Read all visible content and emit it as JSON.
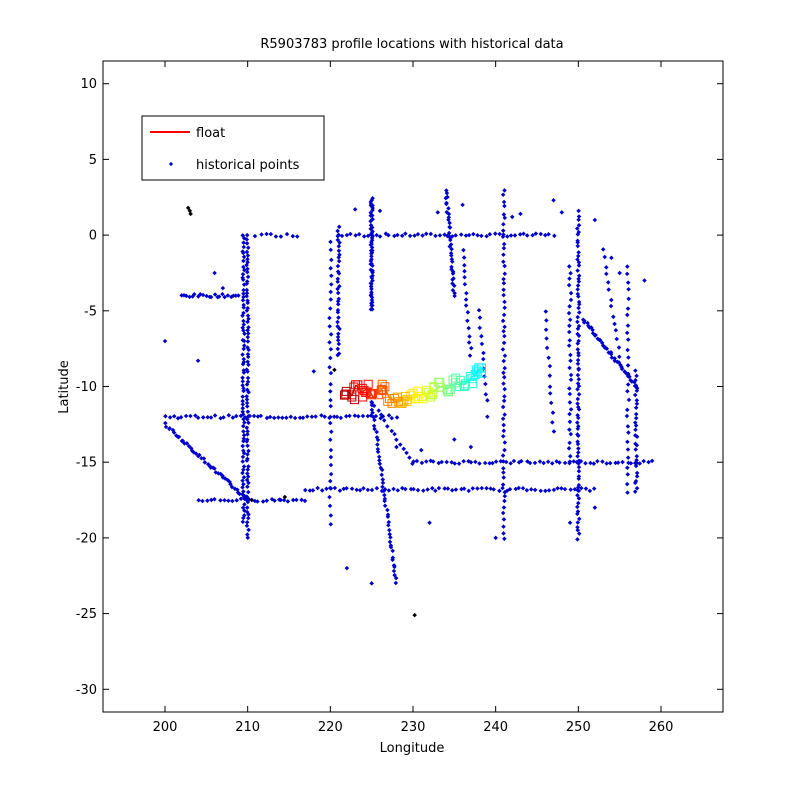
{
  "chart_data": {
    "type": "scatter",
    "title": "R5903783 profile locations with historical data",
    "xlabel": "Longitude",
    "ylabel": "Latitude",
    "xlim": [
      192.5,
      267.5
    ],
    "ylim": [
      -31.5,
      11.5
    ],
    "xticks": [
      200,
      210,
      220,
      230,
      240,
      250,
      260
    ],
    "yticks": [
      10,
      5,
      0,
      -5,
      -10,
      -15,
      -20,
      -25,
      -30
    ],
    "xtick_labels": [
      "200",
      "210",
      "220",
      "230",
      "240",
      "250",
      "260"
    ],
    "ytick_labels": [
      "10",
      "5",
      "0",
      "-5",
      "-10",
      "-15",
      "-20",
      "-25",
      "-30"
    ],
    "grid": false,
    "legend": {
      "position": "top-left",
      "entries": [
        {
          "label": "float",
          "color": "#ff0000",
          "marker": "line"
        },
        {
          "label": "historical points",
          "color": "#0000cc",
          "marker": "dot"
        }
      ]
    },
    "colors": {
      "historical": "#0000cc",
      "special": "#000000",
      "axis": "#000000"
    },
    "series": [
      {
        "name": "historical points",
        "segments": [
          {
            "from": [
              221,
              0
            ],
            "to": [
              247,
              0
            ],
            "n": 52
          },
          {
            "from": [
              211,
              0
            ],
            "to": [
              216,
              0
            ],
            "n": 9
          },
          {
            "from": [
              210,
              0
            ],
            "to": [
              210,
              -20
            ],
            "n": 80
          },
          {
            "from": [
              209.5,
              0
            ],
            "to": [
              209.5,
              -19
            ],
            "n": 76
          },
          {
            "from": [
              202,
              -4
            ],
            "to": [
              209,
              -4
            ],
            "n": 22
          },
          {
            "from": [
              200,
              -12
            ],
            "to": [
              228,
              -12
            ],
            "n": 56
          },
          {
            "from": [
              200,
              -12.5
            ],
            "to": [
              210,
              -17.5
            ],
            "n": 46
          },
          {
            "from": [
              204,
              -17.5
            ],
            "to": [
              217,
              -17.5
            ],
            "n": 26
          },
          {
            "from": [
              217,
              -16.8
            ],
            "to": [
              252,
              -16.8
            ],
            "n": 70
          },
          {
            "from": [
              230,
              -15
            ],
            "to": [
              259,
              -15
            ],
            "n": 58
          },
          {
            "from": [
              220,
              -0.5
            ],
            "to": [
              220,
              -19
            ],
            "n": 35
          },
          {
            "from": [
              221,
              0.5
            ],
            "to": [
              221,
              -8
            ],
            "n": 34
          },
          {
            "from": [
              225,
              2.5
            ],
            "to": [
              225,
              -5
            ],
            "n": 60
          },
          {
            "from": [
              225,
              -11
            ],
            "to": [
              228,
              -23
            ],
            "n": 48
          },
          {
            "from": [
              225,
              -11
            ],
            "to": [
              230,
              -15
            ],
            "n": 14
          },
          {
            "from": [
              234,
              3
            ],
            "to": [
              235,
              -4
            ],
            "n": 36
          },
          {
            "from": [
              241,
              3
            ],
            "to": [
              241,
              -20
            ],
            "n": 60
          },
          {
            "from": [
              250,
              1.5
            ],
            "to": [
              250,
              -20
            ],
            "n": 85
          },
          {
            "from": [
              249,
              -2
            ],
            "to": [
              249,
              -15
            ],
            "n": 30
          },
          {
            "from": [
              250.5,
              -5.5
            ],
            "to": [
              257,
              -10
            ],
            "n": 40
          },
          {
            "from": [
              257,
              -9
            ],
            "to": [
              257,
              -17
            ],
            "n": 30
          },
          {
            "from": [
              256,
              -2
            ],
            "to": [
              256,
              -17
            ],
            "n": 28
          },
          {
            "from": [
              253,
              -1
            ],
            "to": [
              255,
              -8
            ],
            "n": 14
          },
          {
            "from": [
              236,
              -1
            ],
            "to": [
              237,
              -8
            ],
            "n": 16
          },
          {
            "from": [
              246,
              -5
            ],
            "to": [
              247,
              -13
            ],
            "n": 14
          },
          {
            "from": [
              238,
              -5
            ],
            "to": [
              239,
              -11
            ],
            "n": 12
          }
        ],
        "points": [
          [
            200,
            -7
          ],
          [
            204,
            -8.3
          ],
          [
            206,
            -2.5
          ],
          [
            207,
            -3.5
          ],
          [
            223,
            1.7
          ],
          [
            226,
            1.6
          ],
          [
            233,
            1.5
          ],
          [
            236,
            2
          ],
          [
            242,
            1.2
          ],
          [
            243,
            1.4
          ],
          [
            247,
            2.3
          ],
          [
            248,
            1.5
          ],
          [
            252,
            1
          ],
          [
            254,
            -1.5
          ],
          [
            255,
            -2.5
          ],
          [
            258,
            -3
          ],
          [
            222,
            -22
          ],
          [
            225,
            -23
          ],
          [
            240,
            -20
          ],
          [
            232,
            -19
          ],
          [
            249,
            -19
          ],
          [
            252,
            -18
          ],
          [
            214,
            -17.5
          ],
          [
            218,
            -9
          ],
          [
            228,
            -14
          ],
          [
            231,
            -14.2
          ],
          [
            235,
            -13.5
          ],
          [
            237,
            -14
          ],
          [
            239,
            -12
          ]
        ]
      },
      {
        "name": "",
        "color": "#000000",
        "points": [
          [
            202.8,
            1.8
          ],
          [
            203.0,
            1.6
          ],
          [
            203.1,
            1.4
          ],
          [
            210.5,
            -17.5
          ],
          [
            214.5,
            -17.3
          ],
          [
            220.5,
            -8.9
          ],
          [
            230.2,
            -25.1
          ]
        ]
      },
      {
        "name": "float",
        "colormap": "jet",
        "points": [
          [
            222.0,
            -10.3
          ],
          [
            222.6,
            -10.6
          ],
          [
            223.1,
            -9.9
          ],
          [
            223.8,
            -10.4
          ],
          [
            224.5,
            -10.1
          ],
          [
            225.2,
            -10.7
          ],
          [
            225.9,
            -10.4
          ],
          [
            226.5,
            -10.0
          ],
          [
            227.2,
            -10.8
          ],
          [
            227.9,
            -11.0
          ],
          [
            228.6,
            -10.9
          ],
          [
            229.3,
            -10.8
          ],
          [
            230.0,
            -10.7
          ],
          [
            230.6,
            -10.6
          ],
          [
            231.3,
            -10.5
          ],
          [
            232.0,
            -10.4
          ],
          [
            232.7,
            -10.2
          ],
          [
            233.4,
            -10.0
          ],
          [
            234.1,
            -10.2
          ],
          [
            234.8,
            -9.9
          ],
          [
            235.5,
            -9.7
          ],
          [
            236.2,
            -9.9
          ],
          [
            236.9,
            -9.5
          ],
          [
            237.5,
            -9.2
          ],
          [
            238.2,
            -8.8
          ]
        ]
      }
    ]
  }
}
